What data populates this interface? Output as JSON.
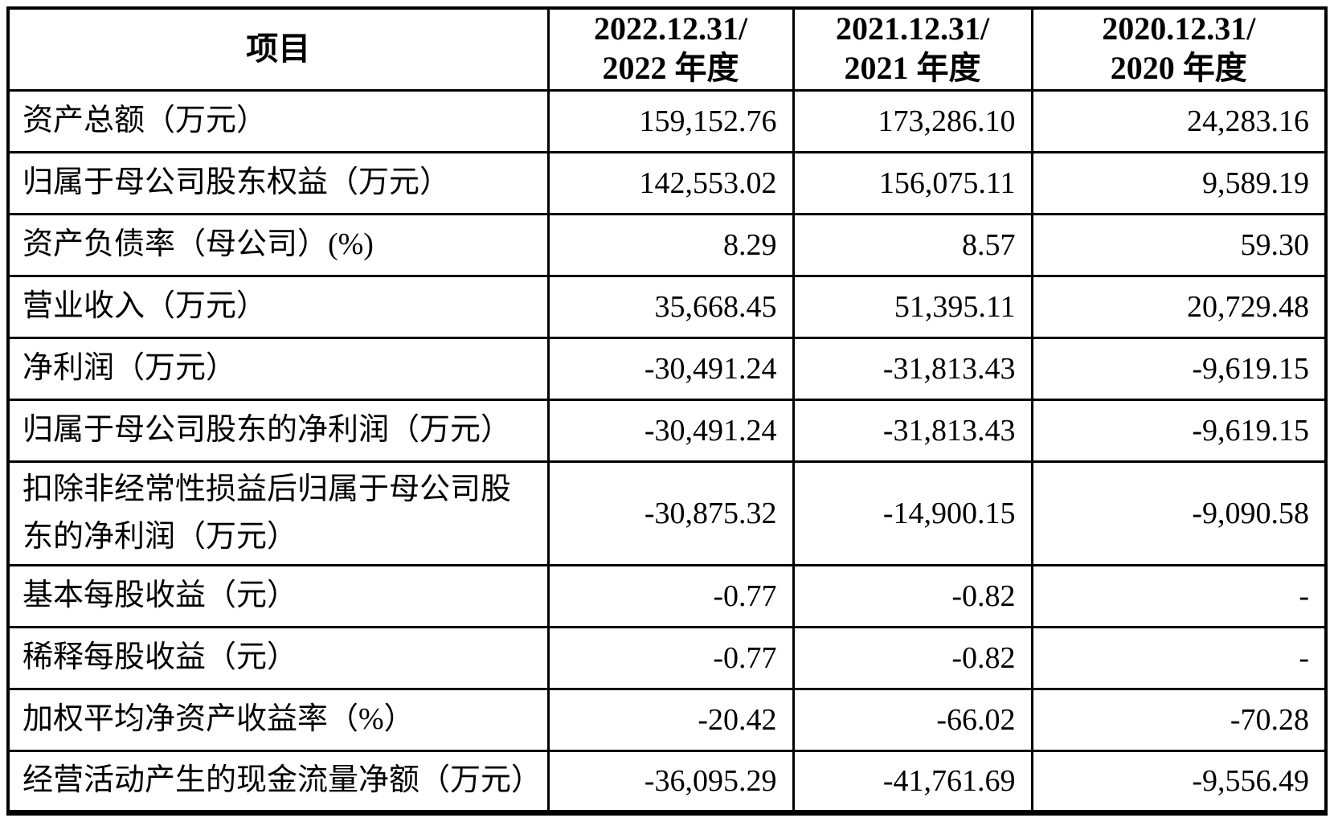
{
  "table": {
    "columns": [
      {
        "label": "项目"
      },
      {
        "line1": "2022.12.31/",
        "line2": "2022 年度"
      },
      {
        "line1": "2021.12.31/",
        "line2": "2021 年度"
      },
      {
        "line1": "2020.12.31/",
        "line2": "2020 年度"
      }
    ],
    "rows": [
      {
        "label": "资产总额（万元）",
        "y2022": "159,152.76",
        "y2021": "173,286.10",
        "y2020": "24,283.16"
      },
      {
        "label": "归属于母公司股东权益（万元）",
        "y2022": "142,553.02",
        "y2021": "156,075.11",
        "y2020": "9,589.19"
      },
      {
        "label": "资产负债率（母公司）(%)",
        "y2022": "8.29",
        "y2021": "8.57",
        "y2020": "59.30"
      },
      {
        "label": "营业收入（万元）",
        "y2022": "35,668.45",
        "y2021": "51,395.11",
        "y2020": "20,729.48"
      },
      {
        "label": "净利润（万元）",
        "y2022": "-30,491.24",
        "y2021": "-31,813.43",
        "y2020": "-9,619.15"
      },
      {
        "label": "归属于母公司股东的净利润（万元）",
        "y2022": "-30,491.24",
        "y2021": "-31,813.43",
        "y2020": "-9,619.15"
      },
      {
        "label": "扣除非经常性损益后归属于母公司股东的净利润（万元）",
        "y2022": "-30,875.32",
        "y2021": "-14,900.15",
        "y2020": "-9,090.58"
      },
      {
        "label": "基本每股收益（元）",
        "y2022": "-0.77",
        "y2021": "-0.82",
        "y2020": "-"
      },
      {
        "label": "稀释每股收益（元）",
        "y2022": "-0.77",
        "y2021": "-0.82",
        "y2020": "-"
      },
      {
        "label": "加权平均净资产收益率（%）",
        "y2022": "-20.42",
        "y2021": "-66.02",
        "y2020": "-70.28"
      },
      {
        "label": "经营活动产生的现金流量净额（万元）",
        "y2022": "-36,095.29",
        "y2021": "-41,761.69",
        "y2020": "-9,556.49"
      }
    ]
  }
}
